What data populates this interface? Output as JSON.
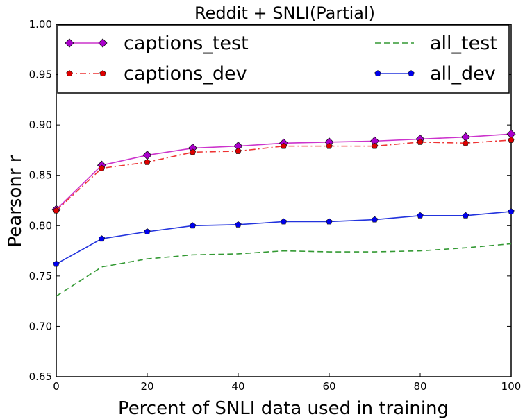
{
  "chart_data": {
    "type": "line",
    "title": "Reddit + SNLI(Partial)",
    "xlabel": "Percent of SNLI data used in training",
    "ylabel": "Pearsonr r",
    "xlim": [
      0,
      100
    ],
    "ylim": [
      0.65,
      1.0
    ],
    "x_ticks": [
      0,
      20,
      40,
      60,
      80,
      100
    ],
    "y_ticks": [
      0.65,
      0.7,
      0.75,
      0.8,
      0.85,
      0.9,
      0.95,
      1.0
    ],
    "x_tick_labels": [
      "0",
      "20",
      "40",
      "60",
      "80",
      "100"
    ],
    "y_tick_labels": [
      "0.65",
      "0.70",
      "0.75",
      "0.80",
      "0.85",
      "0.90",
      "0.95",
      "1.00"
    ],
    "grid": false,
    "legend_position": "top",
    "x": [
      0,
      10,
      20,
      30,
      40,
      50,
      60,
      70,
      80,
      90,
      100
    ],
    "series": [
      {
        "name": "captions_test",
        "color": "#cc33cc",
        "marker": "diamond",
        "marker_color": "#aa00cc",
        "dash": "solid",
        "values": [
          0.816,
          0.86,
          0.87,
          0.877,
          0.879,
          0.882,
          0.883,
          0.884,
          0.886,
          0.888,
          0.891
        ]
      },
      {
        "name": "captions_dev",
        "color": "#ee3333",
        "marker": "pentagon",
        "marker_color": "#dd0000",
        "dash": "dashdot",
        "values": [
          0.815,
          0.857,
          0.863,
          0.873,
          0.874,
          0.879,
          0.879,
          0.879,
          0.883,
          0.882,
          0.885
        ]
      },
      {
        "name": "all_test",
        "color": "#339933",
        "marker": "none",
        "marker_color": "#339933",
        "dash": "dashed",
        "values": [
          0.73,
          0.759,
          0.767,
          0.771,
          0.772,
          0.775,
          0.774,
          0.774,
          0.775,
          0.778,
          0.782
        ]
      },
      {
        "name": "all_dev",
        "color": "#2233dd",
        "marker": "pentagon",
        "marker_color": "#0000ee",
        "dash": "solid",
        "values": [
          0.762,
          0.787,
          0.794,
          0.8,
          0.801,
          0.804,
          0.804,
          0.806,
          0.81,
          0.81,
          0.814
        ]
      }
    ]
  }
}
